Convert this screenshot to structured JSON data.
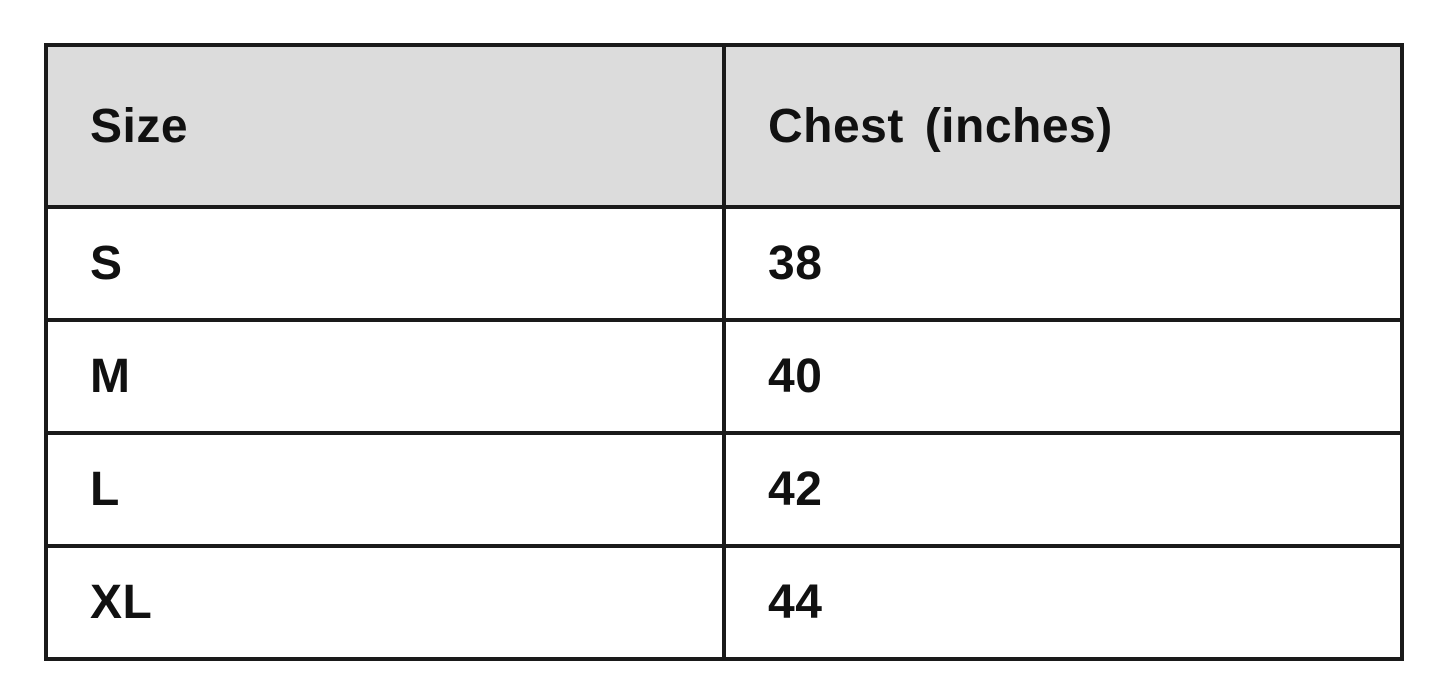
{
  "table": {
    "columns": [
      {
        "label": "Size"
      },
      {
        "label": "Chest (inches)"
      }
    ],
    "rows": [
      {
        "size": "S",
        "chest": "38"
      },
      {
        "size": "M",
        "chest": "40"
      },
      {
        "size": "L",
        "chest": "42"
      },
      {
        "size": "XL",
        "chest": "44"
      }
    ],
    "style": {
      "header_bg": "#dcdcdc",
      "border_color": "#1a1a1a",
      "text_color": "#111111",
      "page_bg": "#ffffff"
    }
  },
  "chart_data": {
    "type": "table",
    "columns": [
      "Size",
      "Chest (inches)"
    ],
    "rows": [
      [
        "S",
        38
      ],
      [
        "M",
        40
      ],
      [
        "L",
        42
      ],
      [
        "XL",
        44
      ]
    ]
  }
}
